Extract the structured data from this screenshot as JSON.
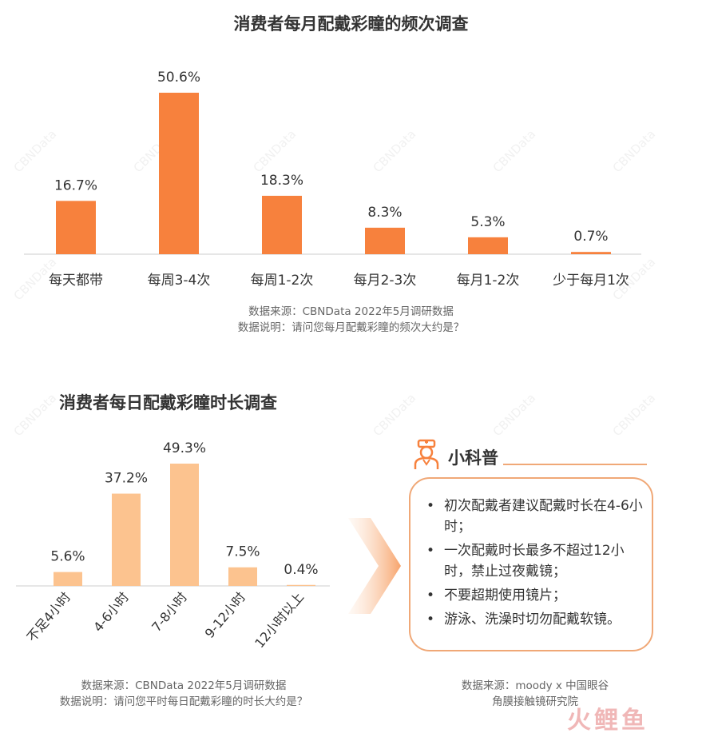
{
  "chart_data": [
    {
      "type": "bar",
      "title": "消费者每月配戴彩瞳的频次调查",
      "categories": [
        "每天都带",
        "每周3-4次",
        "每周1-2次",
        "每月2-3次",
        "每月1-2次",
        "少于每月1次"
      ],
      "values": [
        16.7,
        50.6,
        18.3,
        8.3,
        5.3,
        0.7
      ],
      "labels": [
        "16.7%",
        "50.6%",
        "18.3%",
        "8.3%",
        "5.3%",
        "0.7%"
      ],
      "unit": "%",
      "color": "#f7813d",
      "ylim": [
        0,
        50.6
      ],
      "source_lines": [
        "数据来源：CBNData 2022年5月调研数据",
        "数据说明：请问您每月配戴彩瞳的频次大约是？"
      ]
    },
    {
      "type": "bar",
      "title": "消费者每日配戴彩瞳时长调查",
      "categories": [
        "不足4小时",
        "4-6小时",
        "7-8小时",
        "9-12小时",
        "12小时以上"
      ],
      "values": [
        5.6,
        37.2,
        49.3,
        7.5,
        0.4
      ],
      "labels": [
        "5.6%",
        "37.2%",
        "49.3%",
        "7.5%",
        "0.4%"
      ],
      "unit": "%",
      "color": "#fcc38f",
      "ylim": [
        0,
        49.3
      ],
      "source_lines": [
        "数据来源：CBNData 2022年5月调研数据",
        "数据说明：请问您平时每日配戴彩瞳的时长大约是？"
      ]
    }
  ],
  "tips": {
    "title": "小科普",
    "items": [
      "初次配戴者建议配戴时长在4-6小时；",
      "一次配戴时长最多不超过12小时，禁止过夜戴镜；",
      "不要超期使用镜片；",
      "游泳、洗澡时切勿配戴软镜。"
    ],
    "bullet": "•",
    "source_lines": [
      "数据来源：moody x 中国眼谷",
      "角膜接触镜研究院"
    ]
  },
  "watermark": "CBNData",
  "footer_logo": "火鲤鱼",
  "colors": {
    "accent_light": "#f0a877",
    "bar1": "#f7813d",
    "bar2": "#fcc38f"
  }
}
